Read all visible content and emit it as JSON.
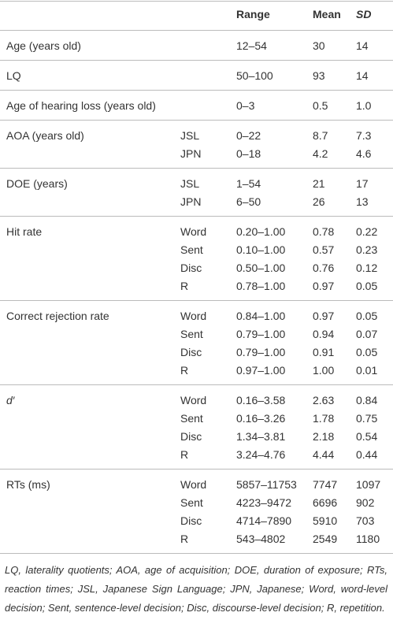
{
  "table": {
    "header": [
      "Range",
      "Mean",
      "SD"
    ],
    "groups": [
      {
        "label": "Age (years old)",
        "rows": [
          {
            "sub": null,
            "range": "12–54",
            "mean": "30",
            "sd": "14"
          }
        ]
      },
      {
        "label": "LQ",
        "rows": [
          {
            "sub": null,
            "range": "50–100",
            "mean": "93",
            "sd": "14"
          }
        ]
      },
      {
        "label": "Age of hearing loss (years old)",
        "rows": [
          {
            "sub": null,
            "range": "0–3",
            "mean": "0.5",
            "sd": "1.0"
          }
        ]
      },
      {
        "label": "AOA (years old)",
        "rows": [
          {
            "sub": "JSL",
            "range": "0–22",
            "mean": "8.7",
            "sd": "7.3"
          },
          {
            "sub": "JPN",
            "range": "0–18",
            "mean": "4.2",
            "sd": "4.6"
          }
        ]
      },
      {
        "label": "DOE (years)",
        "rows": [
          {
            "sub": "JSL",
            "range": "1–54",
            "mean": "21",
            "sd": "17"
          },
          {
            "sub": "JPN",
            "range": "6–50",
            "mean": "26",
            "sd": "13"
          }
        ]
      },
      {
        "label": "Hit rate",
        "rows": [
          {
            "sub": "Word",
            "range": "0.20–1.00",
            "mean": "0.78",
            "sd": "0.22"
          },
          {
            "sub": "Sent",
            "range": "0.10–1.00",
            "mean": "0.57",
            "sd": "0.23"
          },
          {
            "sub": "Disc",
            "range": "0.50–1.00",
            "mean": "0.76",
            "sd": "0.12"
          },
          {
            "sub": "R",
            "range": "0.78–1.00",
            "mean": "0.97",
            "sd": "0.05"
          }
        ]
      },
      {
        "label": "Correct rejection rate",
        "rows": [
          {
            "sub": "Word",
            "range": "0.84–1.00",
            "mean": "0.97",
            "sd": "0.05"
          },
          {
            "sub": "Sent",
            "range": "0.79–1.00",
            "mean": "0.94",
            "sd": "0.07"
          },
          {
            "sub": "Disc",
            "range": "0.79–1.00",
            "mean": "0.91",
            "sd": "0.05"
          },
          {
            "sub": "R",
            "range": "0.97–1.00",
            "mean": "1.00",
            "sd": "0.01"
          }
        ]
      },
      {
        "label": "d′",
        "rows": [
          {
            "sub": "Word",
            "range": "0.16–3.58",
            "mean": "2.63",
            "sd": "0.84"
          },
          {
            "sub": "Sent",
            "range": "0.16–3.26",
            "mean": "1.78",
            "sd": "0.75"
          },
          {
            "sub": "Disc",
            "range": "1.34–3.81",
            "mean": "2.18",
            "sd": "0.54"
          },
          {
            "sub": "R",
            "range": "3.24–4.76",
            "mean": "4.44",
            "sd": "0.44"
          }
        ]
      },
      {
        "label": "RTs (ms)",
        "rows": [
          {
            "sub": "Word",
            "range": "5857–11753",
            "mean": "7747",
            "sd": "1097"
          },
          {
            "sub": "Sent",
            "range": "4223–9472",
            "mean": "6696",
            "sd": "902"
          },
          {
            "sub": "Disc",
            "range": "4714–7890",
            "mean": "5910",
            "sd": "703"
          },
          {
            "sub": "R",
            "range": "543–4802",
            "mean": "2549",
            "sd": "1180"
          }
        ]
      }
    ],
    "footnote": "LQ, laterality quotients; AOA, age of acquisition; DOE, duration of exposure; RTs, reaction times; JSL, Japanese Sign Language; JPN, Japanese; Word, word-level decision; Sent, sentence-level decision; Disc, discourse-level decision; R, repetition."
  }
}
